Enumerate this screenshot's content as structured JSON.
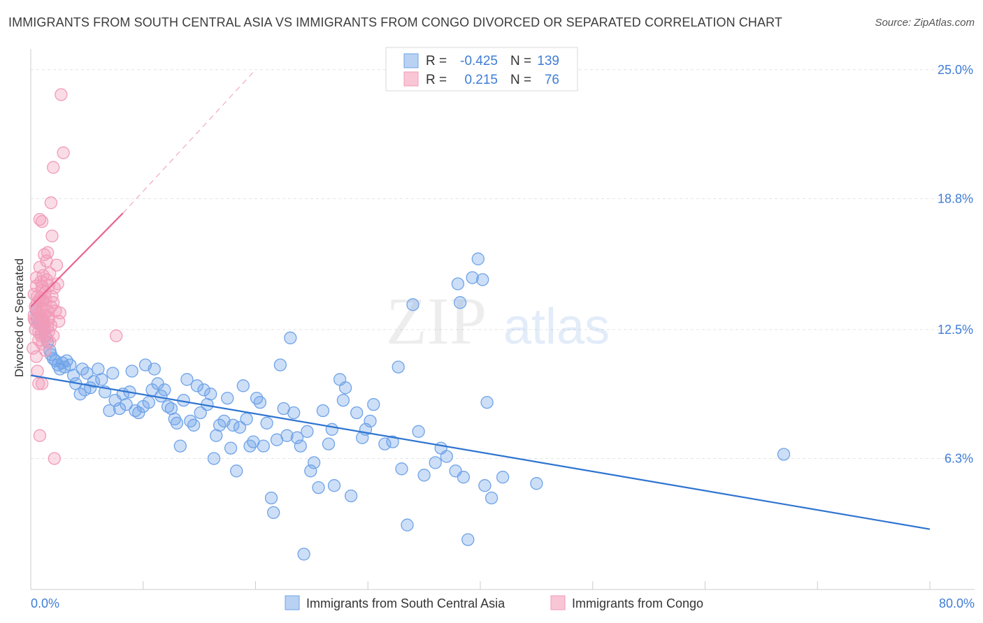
{
  "title": "IMMIGRANTS FROM SOUTH CENTRAL ASIA VS IMMIGRANTS FROM CONGO DIVORCED OR SEPARATED CORRELATION CHART",
  "source": "Source: ZipAtlas.com",
  "watermark": {
    "zip": "ZIP",
    "atlas": "atlas"
  },
  "chart_data": {
    "type": "scatter",
    "xlabel": "",
    "ylabel": "Divorced or Separated",
    "xlim": [
      0,
      80
    ],
    "ylim": [
      0,
      26.0
    ],
    "x_ticks": [
      "0.0%",
      "80.0%"
    ],
    "y_ticks": [
      {
        "value": 6.3,
        "label": "6.3%"
      },
      {
        "value": 12.5,
        "label": "12.5%"
      },
      {
        "value": 18.8,
        "label": "18.8%"
      },
      {
        "value": 25.0,
        "label": "25.0%"
      }
    ],
    "grid": true,
    "legend_position": "top-center",
    "stats": [
      {
        "r_label": "R =",
        "r_value": "-0.425",
        "n_label": "N =",
        "n_value": "139"
      },
      {
        "r_label": "R =",
        "r_value": "0.215",
        "n_label": "N =",
        "n_value": "76"
      }
    ],
    "series": [
      {
        "name": "Immigrants from South Central Asia",
        "color": "#6fa3e8",
        "line_color": "#2e74d0",
        "trend": {
          "x": [
            0,
            80
          ],
          "y": [
            10.3,
            2.9
          ],
          "dashed_after": null
        },
        "points": [
          [
            0.5,
            13.4
          ],
          [
            0.6,
            13.0
          ],
          [
            0.8,
            12.8
          ],
          [
            1.0,
            12.7
          ],
          [
            1.2,
            12.5
          ],
          [
            1.3,
            12.2
          ],
          [
            1.5,
            11.9
          ],
          [
            1.7,
            11.5
          ],
          [
            1.8,
            11.3
          ],
          [
            2.0,
            11.1
          ],
          [
            2.2,
            11.0
          ],
          [
            2.4,
            10.8
          ],
          [
            2.6,
            10.6
          ],
          [
            2.8,
            10.9
          ],
          [
            3.0,
            10.7
          ],
          [
            3.2,
            11.0
          ],
          [
            3.5,
            10.8
          ],
          [
            3.8,
            10.3
          ],
          [
            4.0,
            9.9
          ],
          [
            4.4,
            9.4
          ],
          [
            4.6,
            10.6
          ],
          [
            4.8,
            9.6
          ],
          [
            5.0,
            10.4
          ],
          [
            5.3,
            9.7
          ],
          [
            5.6,
            10.0
          ],
          [
            6.0,
            10.6
          ],
          [
            6.3,
            10.1
          ],
          [
            6.6,
            9.5
          ],
          [
            7.0,
            8.6
          ],
          [
            7.3,
            10.4
          ],
          [
            7.5,
            9.1
          ],
          [
            7.9,
            8.7
          ],
          [
            8.2,
            9.4
          ],
          [
            8.5,
            8.9
          ],
          [
            8.8,
            9.5
          ],
          [
            9.0,
            10.5
          ],
          [
            9.3,
            8.6
          ],
          [
            9.6,
            8.5
          ],
          [
            10.0,
            8.8
          ],
          [
            10.2,
            10.8
          ],
          [
            10.5,
            9.0
          ],
          [
            10.8,
            9.6
          ],
          [
            11.0,
            10.6
          ],
          [
            11.3,
            9.9
          ],
          [
            11.6,
            9.3
          ],
          [
            11.9,
            9.6
          ],
          [
            12.2,
            8.8
          ],
          [
            12.5,
            8.7
          ],
          [
            12.8,
            8.2
          ],
          [
            13.0,
            8.0
          ],
          [
            13.3,
            6.9
          ],
          [
            13.6,
            9.1
          ],
          [
            13.9,
            10.1
          ],
          [
            14.2,
            8.1
          ],
          [
            14.5,
            7.9
          ],
          [
            14.8,
            9.8
          ],
          [
            15.1,
            8.5
          ],
          [
            15.4,
            9.6
          ],
          [
            15.7,
            8.9
          ],
          [
            16.0,
            9.4
          ],
          [
            16.3,
            6.3
          ],
          [
            16.5,
            7.4
          ],
          [
            16.8,
            7.9
          ],
          [
            17.2,
            8.1
          ],
          [
            17.5,
            9.2
          ],
          [
            17.8,
            6.8
          ],
          [
            18.0,
            7.9
          ],
          [
            18.3,
            5.7
          ],
          [
            18.6,
            7.8
          ],
          [
            18.9,
            9.8
          ],
          [
            19.2,
            8.2
          ],
          [
            19.5,
            6.9
          ],
          [
            19.8,
            7.1
          ],
          [
            20.1,
            9.2
          ],
          [
            20.4,
            9.0
          ],
          [
            20.7,
            6.9
          ],
          [
            21.0,
            8.0
          ],
          [
            21.4,
            4.4
          ],
          [
            21.6,
            3.7
          ],
          [
            21.9,
            7.2
          ],
          [
            22.2,
            10.8
          ],
          [
            22.5,
            8.7
          ],
          [
            22.8,
            7.4
          ],
          [
            23.1,
            12.1
          ],
          [
            23.4,
            8.5
          ],
          [
            23.7,
            7.3
          ],
          [
            24.0,
            6.9
          ],
          [
            24.3,
            1.7
          ],
          [
            24.6,
            7.6
          ],
          [
            24.9,
            5.7
          ],
          [
            25.2,
            6.1
          ],
          [
            25.6,
            4.9
          ],
          [
            26.0,
            8.6
          ],
          [
            26.5,
            7.0
          ],
          [
            26.8,
            7.7
          ],
          [
            27.0,
            5.0
          ],
          [
            27.5,
            10.1
          ],
          [
            27.8,
            9.1
          ],
          [
            28.0,
            9.7
          ],
          [
            28.5,
            4.5
          ],
          [
            29.0,
            8.5
          ],
          [
            29.5,
            7.3
          ],
          [
            29.8,
            7.7
          ],
          [
            30.2,
            8.1
          ],
          [
            30.5,
            8.9
          ],
          [
            31.5,
            7.0
          ],
          [
            32.2,
            7.1
          ],
          [
            32.7,
            10.7
          ],
          [
            33.0,
            5.8
          ],
          [
            33.5,
            3.1
          ],
          [
            34.0,
            13.7
          ],
          [
            34.5,
            7.6
          ],
          [
            35.0,
            5.5
          ],
          [
            36.0,
            6.1
          ],
          [
            36.5,
            6.8
          ],
          [
            37.0,
            6.4
          ],
          [
            37.8,
            5.7
          ],
          [
            38.0,
            14.7
          ],
          [
            38.2,
            13.8
          ],
          [
            38.5,
            5.4
          ],
          [
            38.9,
            2.4
          ],
          [
            39.3,
            15.0
          ],
          [
            39.8,
            15.9
          ],
          [
            40.2,
            14.9
          ],
          [
            40.4,
            5.0
          ],
          [
            40.6,
            9.0
          ],
          [
            41.0,
            4.4
          ],
          [
            42.0,
            5.4
          ],
          [
            45.0,
            5.1
          ],
          [
            67.0,
            6.5
          ]
        ]
      },
      {
        "name": "Immigrants from Congo",
        "color": "#f29bb8",
        "line_color": "#e8648f",
        "trend": {
          "x": [
            0,
            8.2
          ],
          "y": [
            13.6,
            18.1
          ],
          "dashed_to": [
            20,
            25.0
          ]
        },
        "points": [
          [
            0.2,
            11.6
          ],
          [
            0.3,
            13.0
          ],
          [
            0.3,
            14.2
          ],
          [
            0.4,
            12.5
          ],
          [
            0.4,
            13.6
          ],
          [
            0.5,
            14.6
          ],
          [
            0.5,
            11.2
          ],
          [
            0.5,
            15.0
          ],
          [
            0.6,
            13.8
          ],
          [
            0.6,
            12.8
          ],
          [
            0.6,
            10.5
          ],
          [
            0.7,
            9.9
          ],
          [
            0.7,
            12.0
          ],
          [
            0.7,
            13.3
          ],
          [
            0.8,
            14.0
          ],
          [
            0.8,
            17.8
          ],
          [
            0.8,
            7.4
          ],
          [
            0.8,
            15.5
          ],
          [
            0.9,
            12.3
          ],
          [
            0.9,
            13.1
          ],
          [
            0.9,
            14.8
          ],
          [
            1.0,
            11.8
          ],
          [
            1.0,
            13.5
          ],
          [
            1.0,
            14.4
          ],
          [
            1.0,
            17.7
          ],
          [
            1.0,
            9.9
          ],
          [
            1.1,
            12.9
          ],
          [
            1.1,
            15.1
          ],
          [
            1.1,
            13.9
          ],
          [
            1.2,
            12.6
          ],
          [
            1.2,
            16.1
          ],
          [
            1.2,
            13.2
          ],
          [
            1.3,
            14.3
          ],
          [
            1.3,
            11.5
          ],
          [
            1.3,
            13.7
          ],
          [
            1.4,
            12.1
          ],
          [
            1.4,
            15.8
          ],
          [
            1.4,
            14.9
          ],
          [
            1.5,
            13.4
          ],
          [
            1.5,
            16.2
          ],
          [
            1.6,
            12.4
          ],
          [
            1.6,
            14.6
          ],
          [
            1.6,
            13.0
          ],
          [
            1.7,
            11.9
          ],
          [
            1.7,
            15.2
          ],
          [
            1.8,
            13.6
          ],
          [
            1.8,
            18.6
          ],
          [
            1.8,
            12.7
          ],
          [
            1.9,
            14.1
          ],
          [
            1.9,
            17.0
          ],
          [
            2.0,
            13.8
          ],
          [
            2.0,
            12.2
          ],
          [
            2.0,
            20.3
          ],
          [
            2.1,
            14.5
          ],
          [
            2.1,
            6.3
          ],
          [
            2.2,
            13.4
          ],
          [
            2.3,
            15.6
          ],
          [
            2.4,
            14.7
          ],
          [
            2.5,
            12.9
          ],
          [
            2.6,
            13.3
          ],
          [
            0.3,
            13.2
          ],
          [
            0.4,
            12.9
          ],
          [
            0.5,
            13.5
          ],
          [
            0.6,
            14.1
          ],
          [
            0.7,
            12.4
          ],
          [
            0.8,
            13.9
          ],
          [
            0.9,
            12.2
          ],
          [
            1.0,
            14.6
          ],
          [
            1.1,
            13.0
          ],
          [
            1.2,
            12.8
          ],
          [
            1.3,
            14.0
          ],
          [
            1.5,
            12.6
          ],
          [
            2.7,
            23.8
          ],
          [
            2.9,
            21.0
          ],
          [
            7.6,
            12.2
          ],
          [
            1.6,
            13.1
          ]
        ]
      }
    ]
  }
}
